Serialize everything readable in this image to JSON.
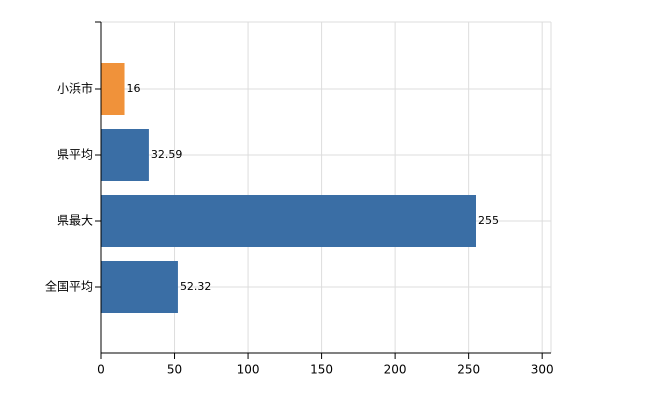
{
  "chart_data": {
    "type": "bar",
    "orientation": "horizontal",
    "categories": [
      "小浜市",
      "県平均",
      "県最大",
      "全国平均"
    ],
    "values": [
      16,
      32.59,
      255,
      52.32
    ],
    "colors": [
      "#f0923a",
      "#3a6ea5",
      "#3a6ea5",
      "#3a6ea5"
    ],
    "xlim": [
      0,
      306
    ],
    "xticks": [
      0,
      50,
      100,
      150,
      200,
      250,
      300
    ],
    "grid": true
  }
}
